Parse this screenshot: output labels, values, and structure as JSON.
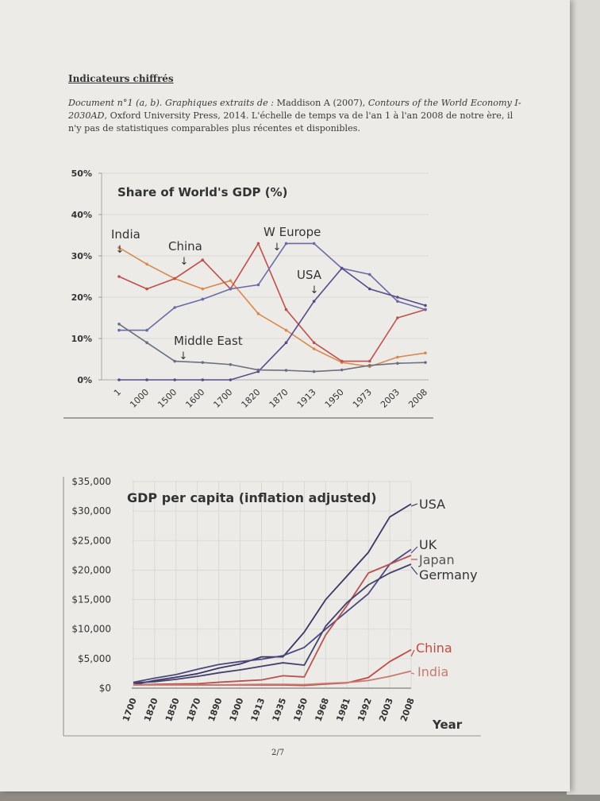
{
  "document": {
    "heading": "Indicateurs chiffrés",
    "caption_doc": "Document n°1 (a, b).",
    "caption_lead": "Graphiques extraits de : ",
    "caption_author": "Maddison A (2007), ",
    "caption_title": "Contours of the World Economy I-2030AD",
    "caption_rest": ", Oxford University Press, 2014. L'échelle de temps va de l'an 1 à l'an 2008 de notre ère, il n'y pas de statistiques comparables plus récentes et disponibles.",
    "page_number": "2/7"
  },
  "chart_data": [
    {
      "type": "line",
      "title": "Share of World's GDP (%)",
      "xlabel": "",
      "ylabel": "",
      "ylim": [
        0,
        50
      ],
      "yticks": [
        "0%",
        "10%",
        "20%",
        "30%",
        "40%",
        "50%"
      ],
      "categories": [
        "1",
        "1000",
        "1500",
        "1600",
        "1700",
        "1820",
        "1870",
        "1913",
        "1950",
        "1973",
        "2003",
        "2008"
      ],
      "series": [
        {
          "name": "India",
          "color": "#d98a4e",
          "values": [
            32,
            28,
            24.5,
            22,
            24,
            16,
            12,
            7.5,
            4.2,
            3.2,
            5.5,
            6.5
          ]
        },
        {
          "name": "China",
          "color": "#c0504d",
          "values": [
            25,
            22,
            24.5,
            29,
            22,
            33,
            17,
            9,
            4.5,
            4.5,
            15,
            17
          ]
        },
        {
          "name": "W Europe",
          "color": "#6a6aa8",
          "values": [
            12,
            12,
            17.5,
            19.5,
            22,
            23,
            33,
            33,
            27,
            25.5,
            19,
            17
          ]
        },
        {
          "name": "USA",
          "color": "#5a4a8a",
          "values": [
            0,
            0,
            0,
            0,
            0,
            2,
            9,
            19,
            27,
            22,
            20,
            18
          ]
        },
        {
          "name": "Middle East",
          "color": "#6a7080",
          "values": [
            13.5,
            9,
            4.5,
            4.2,
            3.7,
            2.4,
            2.3,
            2,
            2.4,
            3.5,
            4,
            4.2
          ]
        }
      ],
      "annotations": [
        {
          "text": "India",
          "arrow": "↓"
        },
        {
          "text": "China",
          "arrow": "↓"
        },
        {
          "text": "W Europe",
          "arrow": "↓"
        },
        {
          "text": "USA",
          "arrow": "↓"
        },
        {
          "text": "Middle East",
          "arrow": "↓"
        }
      ]
    },
    {
      "type": "line",
      "title": "GDP per capita (inflation adjusted)",
      "xlabel": "Year",
      "ylabel": "",
      "ylim": [
        0,
        35000
      ],
      "yticks": [
        "$0",
        "$5,000",
        "$10,000",
        "$15,000",
        "$20,000",
        "$25,000",
        "$30,000",
        "$35,000"
      ],
      "categories": [
        "1700",
        "1820",
        "1850",
        "1870",
        "1890",
        "1900",
        "1913",
        "1935",
        "1950",
        "1968",
        "1981",
        "1992",
        "2003",
        "2008"
      ],
      "series": [
        {
          "name": "USA",
          "color": "#3c3566",
          "values": [
            600,
            1300,
            1850,
            2450,
            3400,
            4100,
            5300,
            5300,
            9500,
            15000,
            19000,
            23000,
            29000,
            31200
          ]
        },
        {
          "name": "UK",
          "color": "#4a4a80",
          "values": [
            1000,
            1700,
            2300,
            3200,
            4000,
            4500,
            4900,
            5500,
            6900,
            10000,
            13000,
            16000,
            21000,
            23500
          ]
        },
        {
          "name": "Japan",
          "color": "#b8524f",
          "values": [
            550,
            650,
            700,
            750,
            1000,
            1200,
            1400,
            2100,
            1900,
            9000,
            14000,
            19500,
            21000,
            22500
          ]
        },
        {
          "name": "Germany",
          "color": "#453f6e",
          "values": [
            900,
            1100,
            1500,
            2000,
            2600,
            3100,
            3700,
            4300,
            3900,
            10500,
            14500,
            17500,
            19500,
            21000
          ]
        },
        {
          "name": "China",
          "color": "#c14a45",
          "values": [
            600,
            600,
            600,
            550,
            550,
            550,
            550,
            550,
            450,
            700,
            900,
            1800,
            4500,
            6500
          ]
        },
        {
          "name": "India",
          "color": "#c87a70",
          "values": [
            550,
            550,
            550,
            550,
            550,
            600,
            650,
            650,
            600,
            800,
            950,
            1300,
            2000,
            2900
          ]
        }
      ]
    }
  ]
}
